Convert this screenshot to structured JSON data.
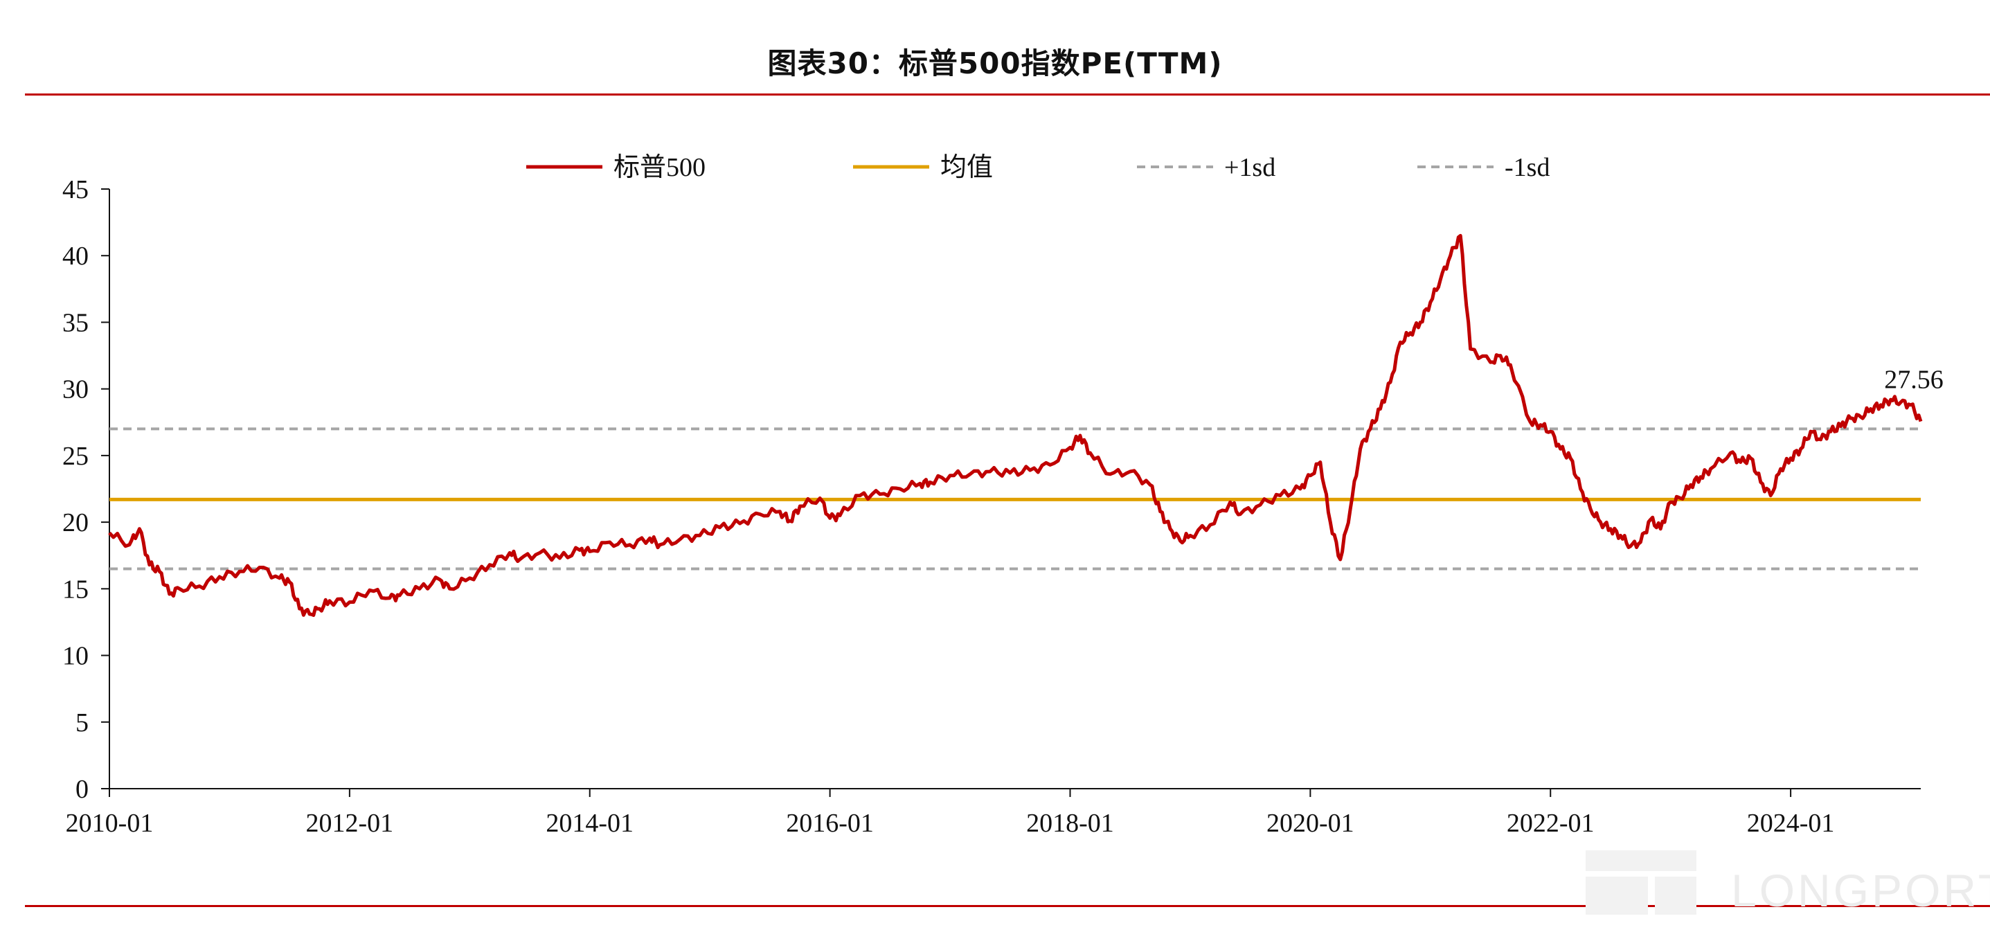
{
  "title": "图表30：标普500指数PE(TTM)",
  "colors": {
    "series": "#c00000",
    "mean": "#e0a000",
    "sd": "#a6a6a6",
    "rule": "#c00000",
    "axis": "#111111"
  },
  "watermark": "LONGPORT",
  "chart_data": {
    "type": "line",
    "title": "图表30：标普500指数PE(TTM)",
    "ylim": [
      0,
      45
    ],
    "yticks": [
      0,
      5,
      10,
      15,
      20,
      25,
      30,
      35,
      40,
      45
    ],
    "xticks": [
      "2010-01",
      "2012-01",
      "2014-01",
      "2016-01",
      "2018-01",
      "2020-01",
      "2022-01",
      "2024-01"
    ],
    "xlim": [
      "2010-01",
      "2025-02"
    ],
    "grid": false,
    "legend_position": "top-center",
    "legend": [
      "标普500",
      "均值",
      "+1sd",
      "-1sd"
    ],
    "series": [
      {
        "name": "标普500",
        "x": [
          "2010-01",
          "2010-03",
          "2010-04",
          "2010-05",
          "2010-06",
          "2010-07",
          "2010-08",
          "2010-10",
          "2010-12",
          "2011-02",
          "2011-04",
          "2011-06",
          "2011-07",
          "2011-08",
          "2011-09",
          "2011-10",
          "2011-11",
          "2012-01",
          "2012-03",
          "2012-05",
          "2012-06",
          "2012-08",
          "2012-10",
          "2012-11",
          "2013-01",
          "2013-03",
          "2013-05",
          "2013-06",
          "2013-08",
          "2013-10",
          "2013-12",
          "2014-01",
          "2014-03",
          "2014-05",
          "2014-07",
          "2014-08",
          "2014-10",
          "2014-12",
          "2015-02",
          "2015-04",
          "2015-06",
          "2015-08",
          "2015-09",
          "2015-10",
          "2015-12",
          "2016-01",
          "2016-02",
          "2016-04",
          "2016-06",
          "2016-08",
          "2016-10",
          "2016-11",
          "2017-01",
          "2017-03",
          "2017-05",
          "2017-07",
          "2017-09",
          "2017-11",
          "2018-01",
          "2018-02",
          "2018-03",
          "2018-05",
          "2018-07",
          "2018-09",
          "2018-10",
          "2018-11",
          "2018-12",
          "2019-01",
          "2019-03",
          "2019-05",
          "2019-06",
          "2019-08",
          "2019-10",
          "2019-12",
          "2020-01",
          "2020-02",
          "2020-03",
          "2020-04",
          "2020-05",
          "2020-06",
          "2020-07",
          "2020-08",
          "2020-09",
          "2020-10",
          "2020-11",
          "2020-12",
          "2021-01",
          "2021-02",
          "2021-03",
          "2021-04",
          "2021-05",
          "2021-07",
          "2021-08",
          "2021-09",
          "2021-11",
          "2021-12",
          "2022-01",
          "2022-02",
          "2022-03",
          "2022-04",
          "2022-05",
          "2022-06",
          "2022-07",
          "2022-08",
          "2022-09",
          "2022-10",
          "2022-11",
          "2022-12",
          "2023-01",
          "2023-02",
          "2023-03",
          "2023-04",
          "2023-05",
          "2023-07",
          "2023-08",
          "2023-09",
          "2023-10",
          "2023-11",
          "2023-12",
          "2024-01",
          "2024-02",
          "2024-03",
          "2024-04",
          "2024-05",
          "2024-06",
          "2024-07",
          "2024-08",
          "2024-09",
          "2024-10",
          "2024-11",
          "2024-12",
          "2025-01",
          "2025-02"
        ],
        "values": [
          19.2,
          18.3,
          19.5,
          16.8,
          16.3,
          14.6,
          15.0,
          15.2,
          15.9,
          16.3,
          16.6,
          15.8,
          15.5,
          13.5,
          13.1,
          13.5,
          14.1,
          14.0,
          14.9,
          14.3,
          14.5,
          15.0,
          15.7,
          15.0,
          15.8,
          16.8,
          17.7,
          17.2,
          17.7,
          17.3,
          17.9,
          17.8,
          18.5,
          18.3,
          18.8,
          18.3,
          18.7,
          19.0,
          19.6,
          19.9,
          20.6,
          20.8,
          20.1,
          21.2,
          21.8,
          20.3,
          20.5,
          22.0,
          22.1,
          22.5,
          22.9,
          23.0,
          23.5,
          23.6,
          23.8,
          23.7,
          23.9,
          24.3,
          25.6,
          26.5,
          25.2,
          23.6,
          23.8,
          22.8,
          20.8,
          19.5,
          18.6,
          19.0,
          19.8,
          21.5,
          20.6,
          21.3,
          22.0,
          22.5,
          23.5,
          24.5,
          20.0,
          17.2,
          21.0,
          25.5,
          27.0,
          28.5,
          30.5,
          33.5,
          34.2,
          35.0,
          36.5,
          38.2,
          40.0,
          41.5,
          33.0,
          32.0,
          32.5,
          31.8,
          27.5,
          27.3,
          26.8,
          25.5,
          24.8,
          22.5,
          21.0,
          20.0,
          19.5,
          19.0,
          18.2,
          18.5,
          20.2,
          19.5,
          21.5,
          21.8,
          22.8,
          23.4,
          24.0,
          25.2,
          24.5,
          24.8,
          23.0,
          22.0,
          24.0,
          24.8,
          25.5,
          26.8,
          26.2,
          26.8,
          27.2,
          27.8,
          27.9,
          28.5,
          28.8,
          29.2,
          29.0,
          28.8,
          27.56
        ]
      },
      {
        "name": "均值",
        "value": 21.7
      },
      {
        "name": "+1sd",
        "value": 27.0
      },
      {
        "name": "-1sd",
        "value": 16.5
      }
    ],
    "annotations": [
      {
        "text": "27.56",
        "x": "2025-02",
        "y": 27.56
      }
    ]
  }
}
